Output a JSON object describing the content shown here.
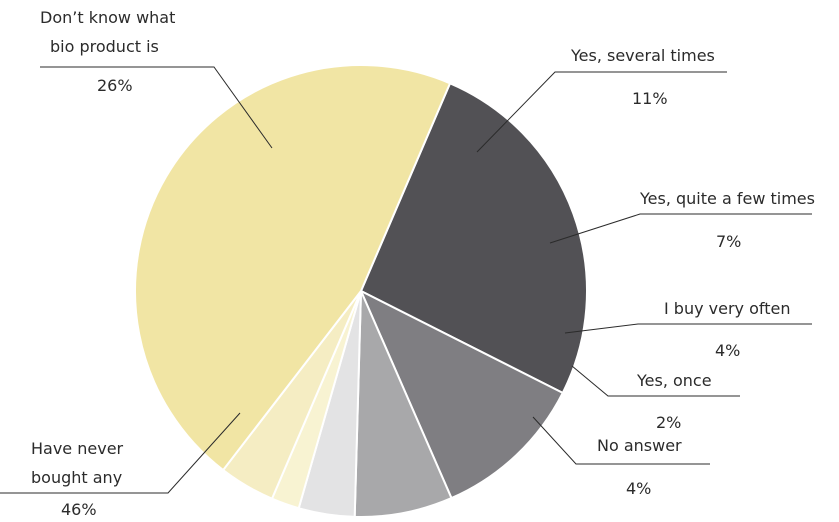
{
  "chart_data": {
    "type": "pie",
    "slices": [
      {
        "label": "Don't know what bio product is",
        "value": 26,
        "value_label": "26%",
        "color": "#525155"
      },
      {
        "label": "Yes, several times",
        "value": 11,
        "value_label": "11%",
        "color": "#7f7e82"
      },
      {
        "label": "Yes, quite a few times",
        "value": 7,
        "value_label": "7%",
        "color": "#a8a8aa"
      },
      {
        "label": "I buy very often",
        "value": 4,
        "value_label": "4%",
        "color": "#e3e3e4"
      },
      {
        "label": "Yes, once",
        "value": 2,
        "value_label": "2%",
        "color": "#f8f3d2"
      },
      {
        "label": "No answer",
        "value": 4,
        "value_label": "4%",
        "color": "#f5edc3"
      },
      {
        "label": "Have never bought any",
        "value": 46,
        "value_label": "46%",
        "color": "#f1e5a4"
      }
    ],
    "label_lines": {
      "dont_know": [
        "Don’t know what",
        "bio product is"
      ],
      "never_bought": [
        "Have never",
        "bought any"
      ]
    }
  }
}
